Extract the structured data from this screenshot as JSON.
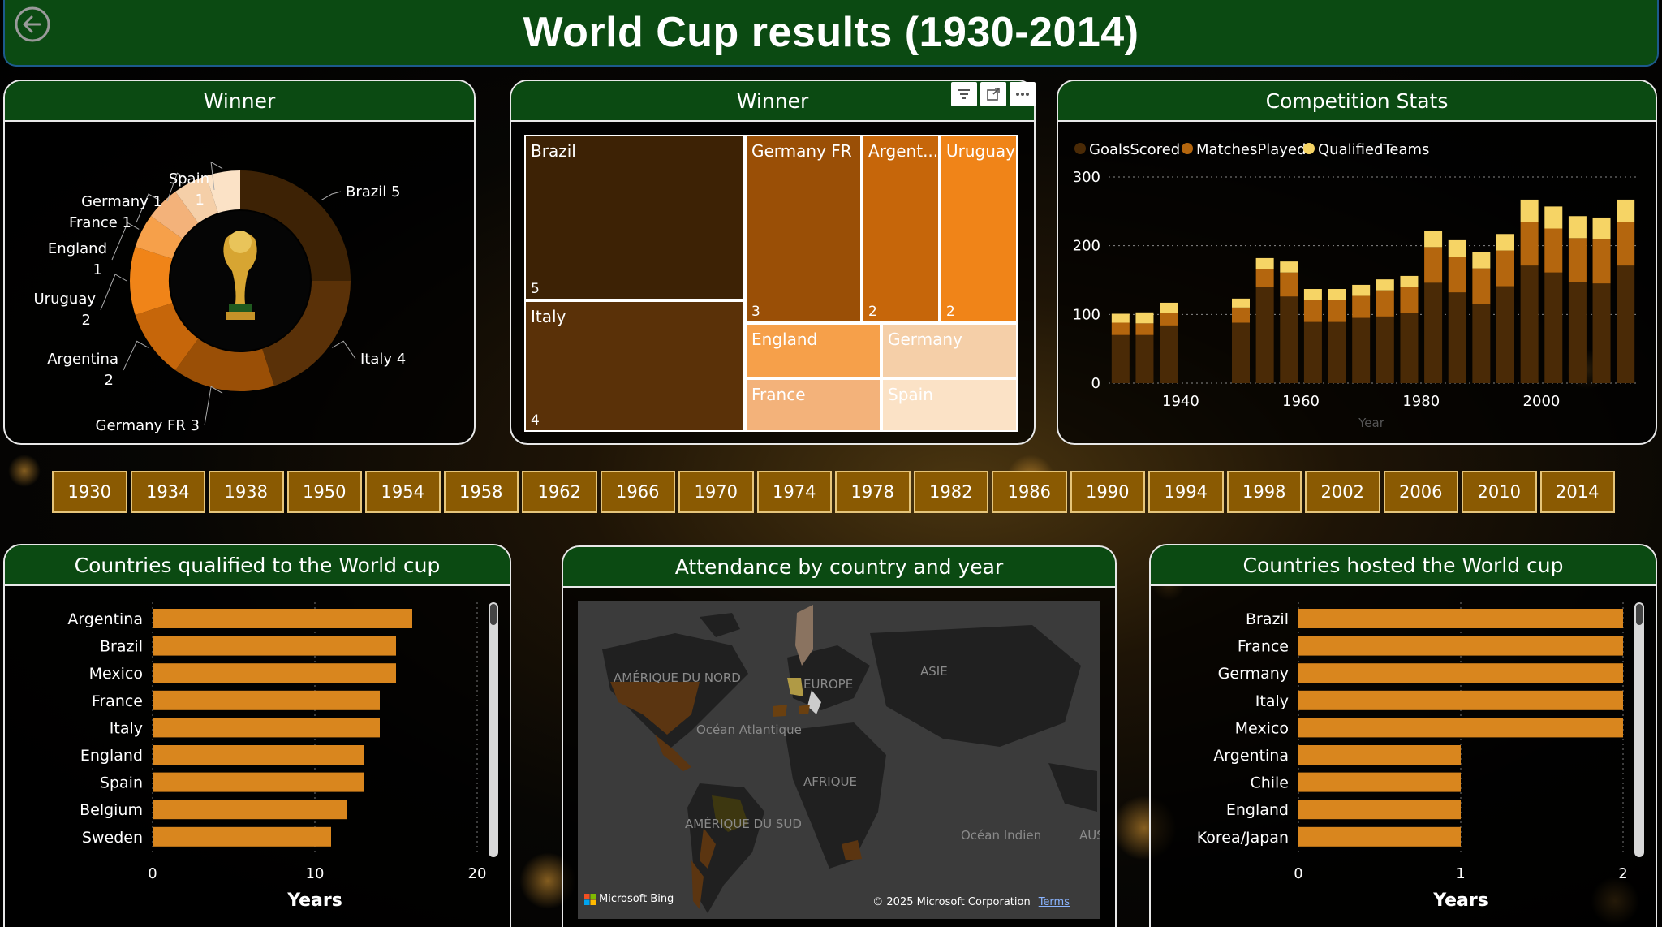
{
  "header": {
    "title": "World Cup results  (1930-2014)"
  },
  "colors": {
    "header_green": "#0b4a12",
    "bar_orange": "#d9861e",
    "slicer_gold": "#8a5a02"
  },
  "winner_donut": {
    "title": "Winner",
    "slices": [
      {
        "name": "Brazil",
        "count": 5,
        "label": "Brazil 5",
        "color": "#3d2205"
      },
      {
        "name": "Italy",
        "count": 4,
        "label": "Italy 4",
        "color": "#5a3108"
      },
      {
        "name": "Germany FR",
        "count": 3,
        "label": "Germany FR 3",
        "color": "#9a4f06"
      },
      {
        "name": "Argentina",
        "count": 2,
        "label_line1": "Argentina",
        "label_line2": "2",
        "color": "#c6660a"
      },
      {
        "name": "Uruguay",
        "count": 2,
        "label_line1": "Uruguay",
        "label_line2": "2",
        "color": "#f08418"
      },
      {
        "name": "England",
        "count": 1,
        "label_line1": "England",
        "label_line2": "1",
        "color": "#f6a04a"
      },
      {
        "name": "France",
        "count": 1,
        "label": "France 1",
        "color": "#f3b27a"
      },
      {
        "name": "Germany",
        "count": 1,
        "label": "Germany 1",
        "color": "#f5cfa8"
      },
      {
        "name": "Spain",
        "count": 1,
        "label_line1": "Spain",
        "label_line2": "1",
        "color": "#fbe2c6"
      }
    ]
  },
  "winner_treemap": {
    "title": "Winner",
    "cells": [
      {
        "name": "Brazil",
        "label": "Brazil",
        "value": "5",
        "color": "#3d2205"
      },
      {
        "name": "Italy",
        "label": "Italy",
        "value": "4",
        "color": "#5a3108"
      },
      {
        "name": "Germany FR",
        "label": "Germany FR",
        "value": "3",
        "color": "#9a4f06"
      },
      {
        "name": "Argentina",
        "label": "Argent...",
        "value": "2",
        "color": "#c6660a"
      },
      {
        "name": "Uruguay",
        "label": "Uruguay",
        "value": "2",
        "color": "#f08418"
      },
      {
        "name": "England",
        "label": "England",
        "color": "#f6a04a"
      },
      {
        "name": "Germany",
        "label": "Germany",
        "color": "#f5cfa8"
      },
      {
        "name": "France",
        "label": "France",
        "color": "#f3b27a"
      },
      {
        "name": "Spain",
        "label": "Spain",
        "color": "#fbe2c6"
      }
    ]
  },
  "competition_stats": {
    "title": "Competition Stats",
    "legend": [
      {
        "label": "GoalsScored",
        "color": "#4a2a06"
      },
      {
        "label": "MatchesPlayed",
        "color": "#b4660e"
      },
      {
        "label": "QualifiedTeams",
        "color": "#f6d465"
      }
    ],
    "xlabel": "Year"
  },
  "chart_data": [
    {
      "type": "bar",
      "title": "Competition Stats",
      "stacked": true,
      "xlabel": "Year",
      "ylim": [
        0,
        300
      ],
      "yticks": [
        0,
        100,
        200,
        300
      ],
      "xticks": [
        1940,
        1960,
        1980,
        2000
      ],
      "categories": [
        1930,
        1934,
        1938,
        1950,
        1954,
        1958,
        1962,
        1966,
        1970,
        1974,
        1978,
        1982,
        1986,
        1990,
        1994,
        1998,
        2002,
        2006,
        2010,
        2014
      ],
      "series": [
        {
          "name": "GoalsScored",
          "color": "#4a2a06",
          "values": [
            70,
            70,
            84,
            88,
            140,
            126,
            89,
            89,
            95,
            97,
            102,
            146,
            132,
            115,
            141,
            171,
            161,
            147,
            145,
            171
          ]
        },
        {
          "name": "MatchesPlayed",
          "color": "#b4660e",
          "values": [
            18,
            17,
            18,
            22,
            26,
            35,
            32,
            32,
            32,
            38,
            38,
            52,
            52,
            52,
            52,
            64,
            64,
            64,
            64,
            64
          ]
        },
        {
          "name": "QualifiedTeams",
          "color": "#f6d465",
          "values": [
            13,
            16,
            15,
            13,
            16,
            16,
            16,
            16,
            16,
            16,
            16,
            24,
            24,
            24,
            24,
            32,
            32,
            32,
            32,
            32
          ]
        }
      ]
    },
    {
      "type": "bar",
      "orientation": "horizontal",
      "title": "Countries qualified to the World cup",
      "xlabel": "Years",
      "xlim": [
        0,
        20
      ],
      "xticks": [
        0,
        10,
        20
      ],
      "categories": [
        "Argentina",
        "Brazil",
        "Mexico",
        "France",
        "Italy",
        "England",
        "Spain",
        "Belgium",
        "Sweden"
      ],
      "values": [
        16,
        15,
        15,
        14,
        14,
        13,
        13,
        12,
        11
      ]
    },
    {
      "type": "bar",
      "orientation": "horizontal",
      "title": "Countries hosted the World cup",
      "xlabel": "Years",
      "xlim": [
        0,
        2
      ],
      "xticks": [
        0,
        1,
        2
      ],
      "categories": [
        "Brazil",
        "France",
        "Germany",
        "Italy",
        "Mexico",
        "Argentina",
        "Chile",
        "England",
        "Korea/Japan"
      ],
      "values": [
        2,
        2,
        2,
        2,
        2,
        1,
        1,
        1,
        1
      ]
    }
  ],
  "year_slicer": [
    "1930",
    "1934",
    "1938",
    "1950",
    "1954",
    "1958",
    "1962",
    "1966",
    "1970",
    "1974",
    "1978",
    "1982",
    "1986",
    "1990",
    "1994",
    "1998",
    "2002",
    "2006",
    "2010",
    "2014"
  ],
  "qualified": {
    "title": "Countries qualified to the World cup",
    "xlabel": "Years"
  },
  "hosted": {
    "title": "Countries hosted the World cup",
    "xlabel": "Years"
  },
  "map": {
    "title": "Attendance by country and year",
    "labels": {
      "north_america": "AMÉRIQUE DU NORD",
      "europe": "EUROPE",
      "asia": "ASIE",
      "atlantic": "Océan Atlantique",
      "africa": "AFRIQUE",
      "south_america": "AMÉRIQUE DU SUD",
      "indian": "Océan Indien",
      "australia": "AUS"
    },
    "brand": "Microsoft Bing",
    "copyright": "© 2025 Microsoft Corporation",
    "terms": "Terms"
  }
}
